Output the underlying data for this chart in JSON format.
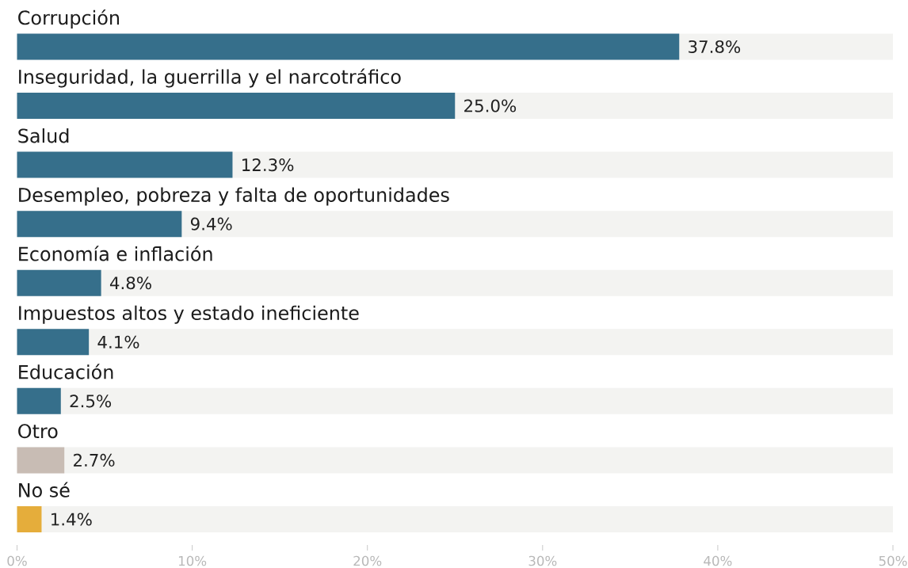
{
  "chart_data": {
    "type": "bar",
    "orientation": "horizontal",
    "categories": [
      "Corrupción",
      "Inseguridad, la guerrilla y el narcotráfico",
      "Salud",
      "Desempleo, pobreza y falta de oportunidades",
      "Economía e inflación",
      "Impuestos altos y estado ineficiente",
      "Educación",
      "Otro",
      "No sé"
    ],
    "values": [
      37.8,
      25.0,
      12.3,
      9.4,
      4.8,
      4.1,
      2.5,
      2.7,
      1.4
    ],
    "colors": [
      "#366f8b",
      "#366f8b",
      "#366f8b",
      "#366f8b",
      "#366f8b",
      "#366f8b",
      "#366f8b",
      "#c8bcb4",
      "#e5ad3b"
    ],
    "value_labels": [
      "37.8%",
      "25.0%",
      "12.3%",
      "9.4%",
      "4.8%",
      "4.1%",
      "2.5%",
      "2.7%",
      "1.4%"
    ],
    "xlim": [
      0,
      50
    ],
    "xticks": [
      {
        "value": 0,
        "label": "0%"
      },
      {
        "value": 10,
        "label": "10%"
      },
      {
        "value": 20,
        "label": "20%"
      },
      {
        "value": 30,
        "label": "30%"
      },
      {
        "value": 40,
        "label": "40%"
      },
      {
        "value": 50,
        "label": "50%"
      }
    ]
  }
}
